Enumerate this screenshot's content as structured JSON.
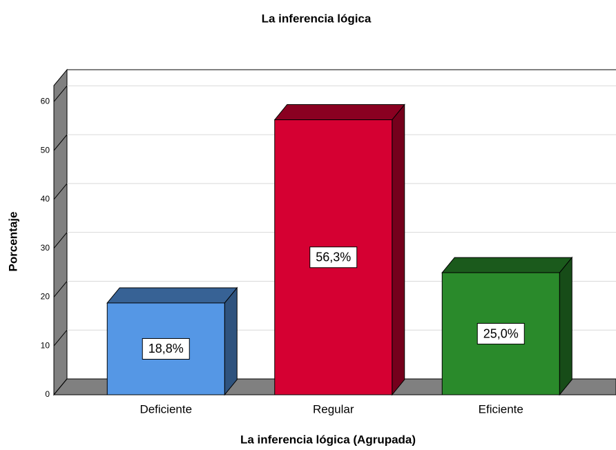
{
  "chart_data": {
    "type": "bar3d",
    "title": "La inferencia lógica",
    "x_label": "La inferencia lógica (Agrupada)",
    "y_label": "Porcentaje",
    "categories": [
      "Deficiente",
      "Regular",
      "Eficiente"
    ],
    "values": [
      18.8,
      56.3,
      25.0
    ],
    "value_labels": [
      "18,8%",
      "56,3%",
      "25,0%"
    ],
    "colors": [
      "#5597e5",
      "#d50032",
      "#2a8a2b"
    ],
    "ylim": [
      0,
      63.3
    ],
    "yticks": [
      0,
      10,
      20,
      30,
      40,
      50,
      60
    ],
    "grid": true
  }
}
